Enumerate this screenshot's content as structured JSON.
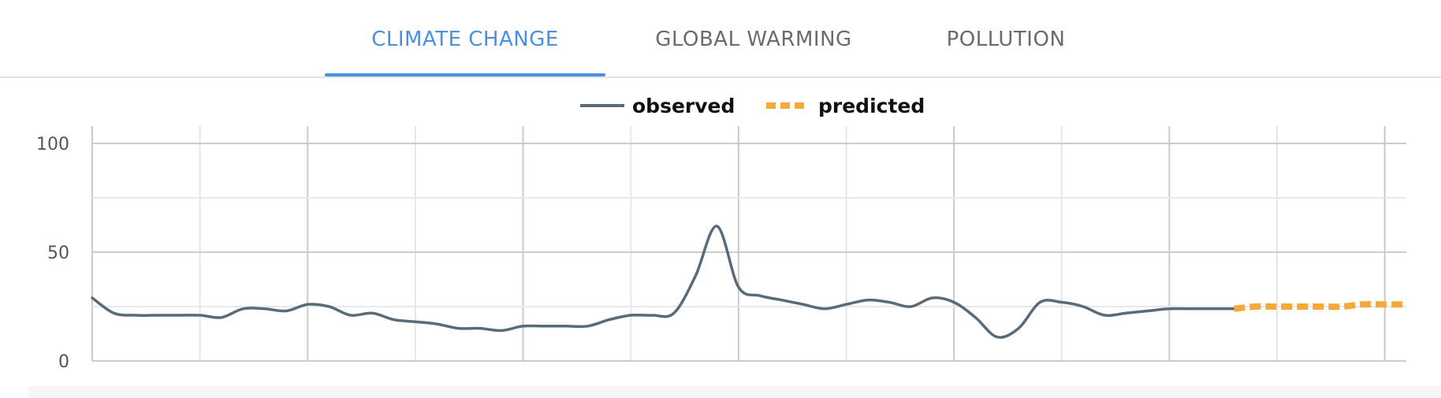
{
  "tabs": [
    {
      "label": "CLIMATE CHANGE",
      "active": true
    },
    {
      "label": "GLOBAL WARMING",
      "active": false
    },
    {
      "label": "POLLUTION",
      "active": false
    }
  ],
  "colors": {
    "accent": "#4a90e2",
    "observed": "#5a6b78",
    "predicted": "#f4a93a"
  },
  "chart_data": {
    "type": "line",
    "legend": {
      "position": "top-center"
    },
    "grid": true,
    "xlim": [
      0,
      61
    ],
    "ylim": [
      0,
      100
    ],
    "y_ticks": [
      0,
      50,
      100
    ],
    "y_tick_labels": [
      "0",
      "50",
      "100"
    ],
    "series": [
      {
        "name": "observed",
        "style": "solid",
        "x": [
          0,
          1,
          2,
          3,
          4,
          5,
          6,
          7,
          8,
          9,
          10,
          11,
          12,
          13,
          14,
          15,
          16,
          17,
          18,
          19,
          20,
          21,
          22,
          23,
          24,
          25,
          26,
          27,
          28,
          29,
          30,
          31,
          32,
          33,
          34,
          35,
          36,
          37,
          38,
          39,
          40,
          41,
          42,
          43,
          44,
          45,
          46,
          47,
          48,
          49,
          50,
          51,
          52,
          53
        ],
        "values": [
          29,
          22,
          21,
          21,
          21,
          21,
          20,
          24,
          24,
          23,
          26,
          25,
          21,
          22,
          19,
          18,
          17,
          15,
          15,
          14,
          16,
          16,
          16,
          16,
          19,
          21,
          21,
          22,
          39,
          62,
          34,
          30,
          28,
          26,
          24,
          26,
          28,
          27,
          25,
          29,
          27,
          20,
          11,
          15,
          27,
          27,
          25,
          21,
          22,
          23,
          24,
          24,
          24,
          24
        ]
      },
      {
        "name": "predicted",
        "style": "dashed",
        "x": [
          53,
          54,
          55,
          56,
          57,
          58,
          59,
          60,
          61
        ],
        "values": [
          24,
          25,
          25,
          25,
          25,
          25,
          26,
          26,
          26
        ]
      }
    ]
  }
}
